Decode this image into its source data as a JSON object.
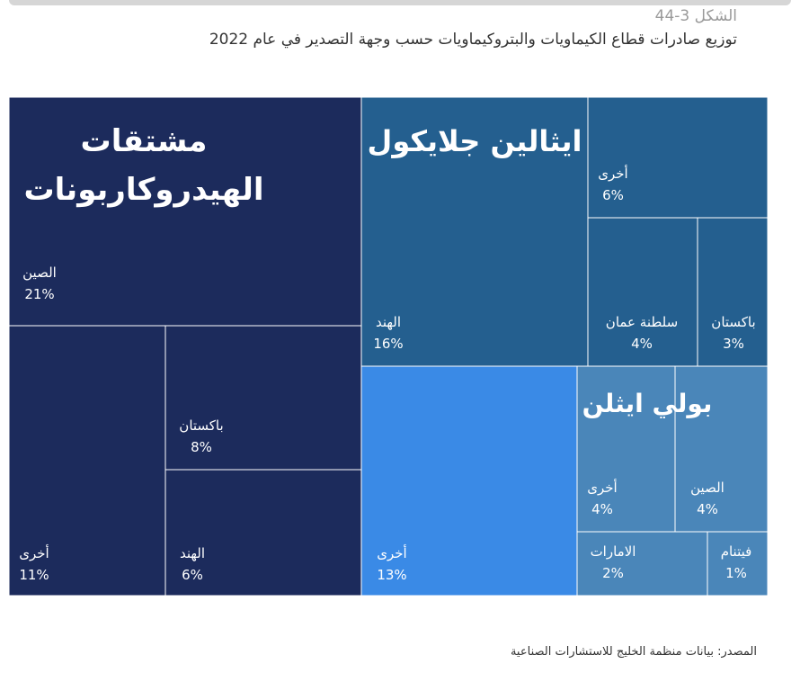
{
  "figure": {
    "label": "الشكل 3-44",
    "title": "توزيع صادرات قطاع الكيماويات والبتروكيماويات حسب وجهة التصدير في عام 2022",
    "source": "المصدر: بيانات منظمة الخليج للاستشارات الصناعية"
  },
  "chart_data": {
    "type": "treemap",
    "unit": "%",
    "groups": [
      {
        "name": "مشتقات الهيدروكاربونات",
        "name_lines": [
          "مشتقات",
          "الهيدروكاربونات"
        ],
        "color": "#1c2b5c",
        "items": [
          {
            "label": "الصين",
            "value": 21
          },
          {
            "label": "باكستان",
            "value": 8
          },
          {
            "label": "الهند",
            "value": 6
          },
          {
            "label": "أخرى",
            "value": 11
          }
        ]
      },
      {
        "name": "ايثالين جلايكول",
        "name_lines": [
          "ايثالين جلايكول"
        ],
        "color": "#245f8f",
        "items": [
          {
            "label": "الهند",
            "value": 16
          },
          {
            "label": "أخرى",
            "value": 6
          },
          {
            "label": "سلطنة عمان",
            "value": 4
          },
          {
            "label": "باكستان",
            "value": 3
          }
        ]
      },
      {
        "name": "بولي ايثلن",
        "name_lines": [
          "بولي ايثلن"
        ],
        "color": "#4a86b9",
        "items": [
          {
            "label": "أخرى",
            "value": 13,
            "color": "#3a8ae6"
          },
          {
            "label": "الصين",
            "value": 4
          },
          {
            "label": "أخرى",
            "value": 4
          },
          {
            "label": "الامارات",
            "value": 2
          },
          {
            "label": "فيتنام",
            "value": 1
          }
        ]
      }
    ]
  }
}
